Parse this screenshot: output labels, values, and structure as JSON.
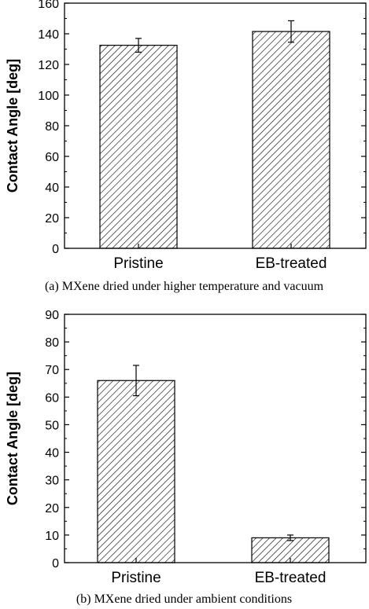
{
  "chart_data": [
    {
      "type": "bar",
      "categories": [
        "Pristine",
        "EB-treated"
      ],
      "values": [
        132.5,
        141.5
      ],
      "errors": [
        4.5,
        7.0
      ],
      "ylabel": "Contact Angle [deg]",
      "ylim": [
        0,
        160
      ],
      "yticks": [
        0,
        20,
        40,
        60,
        80,
        100,
        120,
        140,
        160
      ],
      "caption": "(a) MXene dried under higher temperature and vacuum",
      "bar_fill": "hatched",
      "grid": false
    },
    {
      "type": "bar",
      "categories": [
        "Pristine",
        "EB-treated"
      ],
      "values": [
        66,
        9
      ],
      "errors": [
        5.5,
        1.0
      ],
      "ylabel": "Contact Angle [deg]",
      "ylim": [
        0,
        90
      ],
      "yticks": [
        0,
        10,
        20,
        30,
        40,
        50,
        60,
        70,
        80,
        90
      ],
      "caption": "(b) MXene dried under ambient conditions",
      "bar_fill": "hatched",
      "grid": false
    }
  ],
  "colors": {
    "axis": "#000000",
    "bar_stroke": "#000000",
    "hatch": "#000000",
    "background": "#ffffff"
  }
}
